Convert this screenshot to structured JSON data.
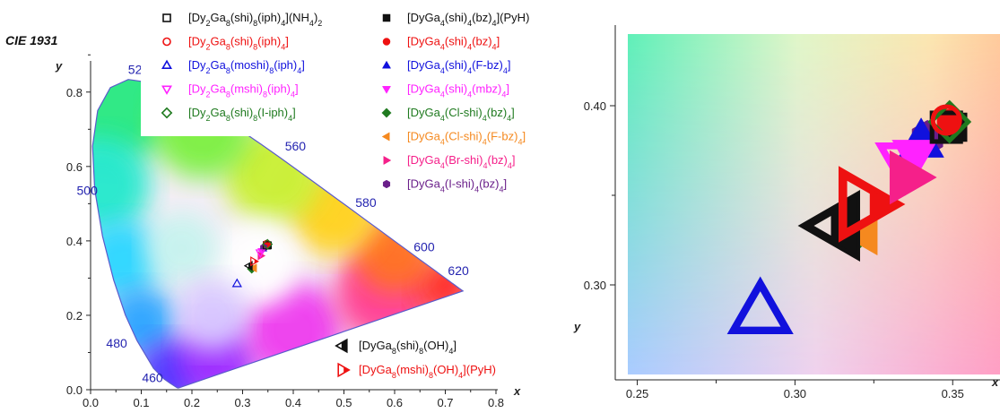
{
  "colors": {
    "black": "#111111",
    "red": "#ee1111",
    "blue": "#1111dd",
    "magenta": "#ff22ff",
    "green": "#1f7a1f",
    "orange": "#f5891f",
    "pink": "#f5208a",
    "purple": "#6a1f8a",
    "locus_line": "#5a5acb",
    "label_blue": "#2424b0"
  },
  "chart_data": [
    {
      "type": "scatter",
      "title": "CIE 1931",
      "xlabel": "x",
      "ylabel": "y",
      "xlim": [
        0.0,
        0.8
      ],
      "ylim": [
        0.0,
        0.85
      ],
      "x_ticks": [
        "0.0",
        "0.1",
        "0.2",
        "0.3",
        "0.4",
        "0.5",
        "0.6",
        "0.7",
        "0.8"
      ],
      "y_ticks": [
        "0.0",
        "0.2",
        "0.4",
        "0.6",
        "0.8"
      ],
      "wavelength_labels": [
        {
          "text": "460",
          "x": 0.144,
          "y": 0.03
        },
        {
          "text": "480",
          "x": 0.091,
          "y": 0.133
        },
        {
          "text": "500",
          "x": 0.008,
          "y": 0.538
        },
        {
          "text": "520",
          "x": 0.074,
          "y": 0.834
        },
        {
          "text": "560",
          "x": 0.373,
          "y": 0.624
        },
        {
          "text": "580",
          "x": 0.512,
          "y": 0.487
        },
        {
          "text": "600",
          "x": 0.627,
          "y": 0.372
        },
        {
          "text": "620",
          "x": 0.691,
          "y": 0.308
        }
      ],
      "series": [
        {
          "name": "[Dy2Ga8(shi)8(iph)4](NH4)2",
          "marker": "square-open",
          "color": "#111111",
          "x": 0.348,
          "y": 0.388
        },
        {
          "name": "[Dy2Ga8(shi)8(iph)4]",
          "marker": "circle-open",
          "color": "#ee1111",
          "x": 0.348,
          "y": 0.392
        },
        {
          "name": "[Dy2Ga8(moshi)8(iph)4]",
          "marker": "triangle-open",
          "color": "#1111dd",
          "x": 0.289,
          "y": 0.285
        },
        {
          "name": "[Dy2Ga8(mshi)8(iph)4]",
          "marker": "triangle-down-open",
          "color": "#ff22ff",
          "x": 0.335,
          "y": 0.368
        },
        {
          "name": "[Dy2Ga8(shi)8(I-iph)4]",
          "marker": "diamond-open",
          "color": "#1f7a1f",
          "x": 0.349,
          "y": 0.391
        },
        {
          "name": "[DyGa4(shi)4(bz)4](PyH)",
          "marker": "square",
          "color": "#111111",
          "x": 0.35,
          "y": 0.388
        },
        {
          "name": "[DyGa4(shi)4(bz)4]",
          "marker": "circle",
          "color": "#ee1111",
          "x": 0.349,
          "y": 0.391
        },
        {
          "name": "[DyGa4(shi)4(F-bz)4]",
          "marker": "triangle",
          "color": "#1111dd",
          "x": 0.34,
          "y": 0.38
        },
        {
          "name": "[DyGa4(shi)4(mbz)4]",
          "marker": "triangle-down",
          "color": "#ff22ff",
          "x": 0.338,
          "y": 0.372
        },
        {
          "name": "[DyGa4(Cl-shi)4(bz)4]",
          "marker": "diamond",
          "color": "#1f7a1f",
          "x": 0.318,
          "y": 0.325
        },
        {
          "name": "[DyGa4(Cl-shi)4(F-bz)4]",
          "marker": "triangle-left",
          "color": "#f5891f",
          "x": 0.322,
          "y": 0.327
        },
        {
          "name": "[DyGa4(Br-shi)4(bz)4]",
          "marker": "triangle-right",
          "color": "#f5208a",
          "x": 0.336,
          "y": 0.36
        },
        {
          "name": "[DyGa4(I-shi)4(bz)4]",
          "marker": "hexagon",
          "color": "#6a1f8a",
          "x": 0.342,
          "y": 0.382
        },
        {
          "name": "[DyGa8(shi)8(OH)4]",
          "marker": "triangle-left-half",
          "color": "#111111",
          "x": 0.313,
          "y": 0.333
        },
        {
          "name": "[DyGa8(mshi)8(OH)4](PyH)",
          "marker": "triangle-right-half",
          "color": "#ee1111",
          "x": 0.322,
          "y": 0.345
        }
      ]
    },
    {
      "type": "scatter",
      "xlabel": "x",
      "ylabel": "y",
      "xlim": [
        0.247,
        0.365
      ],
      "ylim": [
        0.25,
        0.44
      ],
      "x_ticks": [
        "0.25",
        "0.30",
        "0.35"
      ],
      "y_ticks": [
        "0.30",
        "0.40"
      ]
    }
  ],
  "legend_left": [
    {
      "marker": "square-open",
      "color": "#111111",
      "parts": [
        [
          "[Dy",
          ""
        ],
        [
          "2",
          "sub"
        ],
        [
          "Ga",
          ""
        ],
        [
          "8",
          "sub"
        ],
        [
          "(shi)",
          ""
        ],
        [
          "8",
          "sub"
        ],
        [
          "(iph)",
          ""
        ],
        [
          "4",
          "sub"
        ],
        [
          "](NH",
          ""
        ],
        [
          "4",
          "sub"
        ],
        [
          ")",
          ""
        ],
        [
          "2",
          "sub"
        ]
      ]
    },
    {
      "marker": "circle-open",
      "color": "#ee1111",
      "parts": [
        [
          "[Dy",
          ""
        ],
        [
          "2",
          "sub"
        ],
        [
          "Ga",
          ""
        ],
        [
          "8",
          "sub"
        ],
        [
          "(shi)",
          ""
        ],
        [
          "8",
          "sub"
        ],
        [
          "(iph)",
          ""
        ],
        [
          "4",
          "sub"
        ],
        [
          "]",
          ""
        ]
      ]
    },
    {
      "marker": "triangle-open",
      "color": "#1111dd",
      "parts": [
        [
          "[Dy",
          ""
        ],
        [
          "2",
          "sub"
        ],
        [
          "Ga",
          ""
        ],
        [
          "8",
          "sub"
        ],
        [
          "(moshi)",
          ""
        ],
        [
          "8",
          "sub"
        ],
        [
          "(iph)",
          ""
        ],
        [
          "4",
          "sub"
        ],
        [
          "]",
          ""
        ]
      ]
    },
    {
      "marker": "triangle-down-open",
      "color": "#ff22ff",
      "parts": [
        [
          "[Dy",
          ""
        ],
        [
          "2",
          "sub"
        ],
        [
          "Ga",
          ""
        ],
        [
          "8",
          "sub"
        ],
        [
          "(mshi)",
          ""
        ],
        [
          "8",
          "sub"
        ],
        [
          "(iph)",
          ""
        ],
        [
          "4",
          "sub"
        ],
        [
          "]",
          ""
        ]
      ]
    },
    {
      "marker": "diamond-open",
      "color": "#1f7a1f",
      "parts": [
        [
          "[Dy",
          ""
        ],
        [
          "2",
          "sub"
        ],
        [
          "Ga",
          ""
        ],
        [
          "8",
          "sub"
        ],
        [
          "(shi)",
          ""
        ],
        [
          "8",
          "sub"
        ],
        [
          "(I-iph)",
          ""
        ],
        [
          "4",
          "sub"
        ],
        [
          "]",
          ""
        ]
      ]
    }
  ],
  "legend_right": [
    {
      "marker": "square",
      "color": "#111111",
      "parts": [
        [
          "[DyGa",
          ""
        ],
        [
          "4",
          "sub"
        ],
        [
          "(shi)",
          ""
        ],
        [
          "4",
          "sub"
        ],
        [
          "(bz)",
          ""
        ],
        [
          "4",
          "sub"
        ],
        [
          "](PyH)",
          ""
        ]
      ]
    },
    {
      "marker": "circle",
      "color": "#ee1111",
      "parts": [
        [
          "[DyGa",
          ""
        ],
        [
          "4",
          "sub"
        ],
        [
          "(shi)",
          ""
        ],
        [
          "4",
          "sub"
        ],
        [
          "(bz)",
          ""
        ],
        [
          "4",
          "sub"
        ],
        [
          "]",
          ""
        ]
      ]
    },
    {
      "marker": "triangle",
      "color": "#1111dd",
      "parts": [
        [
          "[DyGa",
          ""
        ],
        [
          "4",
          "sub"
        ],
        [
          "(shi)",
          ""
        ],
        [
          "4",
          "sub"
        ],
        [
          "(F-bz)",
          ""
        ],
        [
          "4",
          "sub"
        ],
        [
          "]",
          ""
        ]
      ]
    },
    {
      "marker": "triangle-down",
      "color": "#ff22ff",
      "parts": [
        [
          "[DyGa",
          ""
        ],
        [
          "4",
          "sub"
        ],
        [
          "(shi)",
          ""
        ],
        [
          "4",
          "sub"
        ],
        [
          "(mbz)",
          ""
        ],
        [
          "4",
          "sub"
        ],
        [
          "]",
          ""
        ]
      ]
    },
    {
      "marker": "diamond",
      "color": "#1f7a1f",
      "parts": [
        [
          "[DyGa",
          ""
        ],
        [
          "4",
          "sub"
        ],
        [
          "(Cl-shi)",
          ""
        ],
        [
          "4",
          "sub"
        ],
        [
          "(bz)",
          ""
        ],
        [
          "4",
          "sub"
        ],
        [
          "]",
          ""
        ]
      ]
    },
    {
      "marker": "triangle-left",
      "color": "#f5891f",
      "parts": [
        [
          "[DyGa",
          ""
        ],
        [
          "4",
          "sub"
        ],
        [
          "(Cl-shi)",
          ""
        ],
        [
          "4",
          "sub"
        ],
        [
          "(F-bz)",
          ""
        ],
        [
          "4",
          "sub"
        ],
        [
          "]",
          ""
        ]
      ]
    },
    {
      "marker": "triangle-right",
      "color": "#f5208a",
      "parts": [
        [
          "[DyGa",
          ""
        ],
        [
          "4",
          "sub"
        ],
        [
          "(Br-shi)",
          ""
        ],
        [
          "4",
          "sub"
        ],
        [
          "(bz)",
          ""
        ],
        [
          "4",
          "sub"
        ],
        [
          "]",
          ""
        ]
      ]
    },
    {
      "marker": "hexagon",
      "color": "#6a1f8a",
      "parts": [
        [
          "[DyGa",
          ""
        ],
        [
          "4",
          "sub"
        ],
        [
          "(I-shi)",
          ""
        ],
        [
          "4",
          "sub"
        ],
        [
          "(bz)",
          ""
        ],
        [
          "4",
          "sub"
        ],
        [
          "]",
          ""
        ]
      ]
    }
  ],
  "legend_bottom": [
    {
      "marker": "triangle-left-half",
      "color": "#111111",
      "parts": [
        [
          "[DyGa",
          ""
        ],
        [
          "8",
          "sub"
        ],
        [
          "(shi)",
          ""
        ],
        [
          "8",
          "sub"
        ],
        [
          "(OH)",
          ""
        ],
        [
          "4",
          "sub"
        ],
        [
          "]",
          ""
        ]
      ]
    },
    {
      "marker": "triangle-right-half",
      "color": "#ee1111",
      "parts": [
        [
          "[DyGa",
          ""
        ],
        [
          "8",
          "sub"
        ],
        [
          "(mshi)",
          ""
        ],
        [
          "8",
          "sub"
        ],
        [
          "(OH)",
          ""
        ],
        [
          "4",
          "sub"
        ],
        [
          "](PyH)",
          ""
        ]
      ]
    }
  ]
}
